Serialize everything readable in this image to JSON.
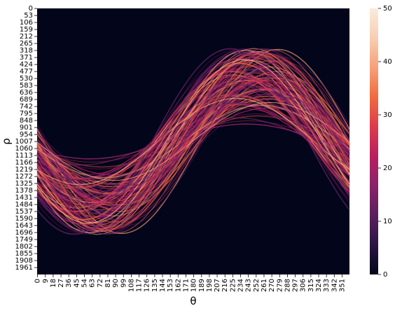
{
  "chart_data": {
    "type": "heatmap",
    "title": "",
    "xlabel": "θ",
    "ylabel": "ρ",
    "x_ticks": [
      "0",
      "9",
      "18",
      "27",
      "36",
      "45",
      "54",
      "63",
      "72",
      "81",
      "90",
      "99",
      "108",
      "117",
      "126",
      "135",
      "144",
      "153",
      "162",
      "171",
      "180",
      "189",
      "198",
      "207",
      "216",
      "225",
      "234",
      "243",
      "252",
      "261",
      "270",
      "279",
      "288",
      "297",
      "306",
      "315",
      "324",
      "333",
      "342",
      "351"
    ],
    "y_ticks": [
      "0",
      "53",
      "106",
      "159",
      "212",
      "265",
      "318",
      "371",
      "424",
      "477",
      "530",
      "583",
      "636",
      "689",
      "742",
      "795",
      "848",
      "901",
      "954",
      "1007",
      "1060",
      "1113",
      "1166",
      "1219",
      "1272",
      "1325",
      "1378",
      "1431",
      "1484",
      "1537",
      "1590",
      "1643",
      "1696",
      "1749",
      "1802",
      "1855",
      "1908",
      "1961"
    ],
    "x_range": [
      0,
      359
    ],
    "y_range": [
      0,
      2014
    ],
    "colorbar": {
      "range": [
        0,
        50
      ],
      "ticks": [
        "0",
        "10",
        "20",
        "30",
        "40",
        "50"
      ],
      "colormap": "rocket",
      "stops": [
        "#03051a",
        "#2b1543",
        "#5a1f5e",
        "#8a226a",
        "#b8205f",
        "#de3a4c",
        "#f06b3f",
        "#f6a07a",
        "#f8ceb3",
        "#faebdd"
      ]
    },
    "description_of_pattern": "Hough transform accumulator: many overlapping sinusoidal curves rho(theta)",
    "curve_envelope": {
      "offset_rho": 1007,
      "max_amplitude_rho": 706,
      "peak_theta_upper": 252,
      "peak_theta_lower": 72
    }
  }
}
